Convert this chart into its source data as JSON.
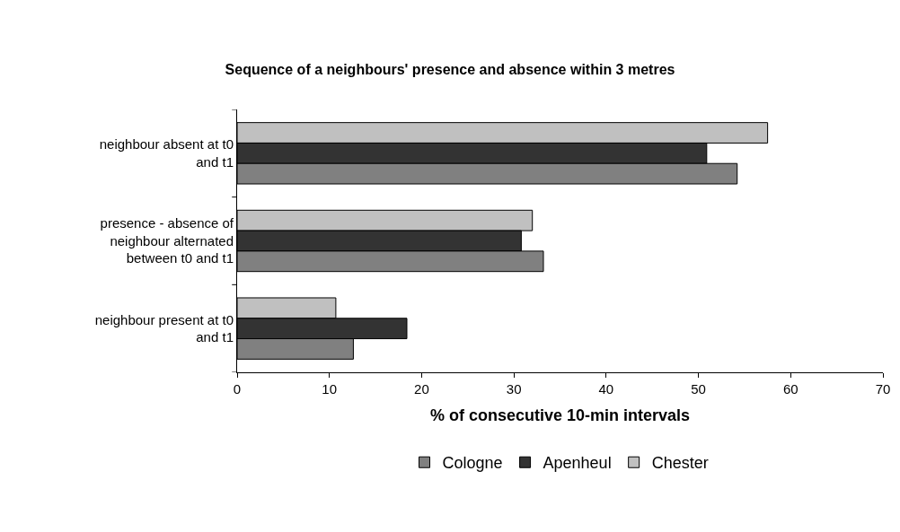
{
  "chart_data": {
    "type": "bar",
    "orientation": "horizontal",
    "title": "Sequence of a neighbours' presence and absence within 3 metres",
    "xlabel": "% of consecutive 10-min intervals",
    "categories": [
      "neighbour absent at t0 and t1",
      "presence - absence of neighbour alternated between t0 and t1",
      "neighbour present at t0 and t1"
    ],
    "series": [
      {
        "name": "Cologne",
        "color": "#808080",
        "values": [
          54.2,
          33.2,
          12.6
        ]
      },
      {
        "name": "Apenheul",
        "color": "#333333",
        "values": [
          50.9,
          30.8,
          18.4
        ]
      },
      {
        "name": "Chester",
        "color": "#c0c0c0",
        "values": [
          57.5,
          32.0,
          10.7
        ]
      }
    ],
    "xlim": [
      0,
      70
    ],
    "xticks": [
      0,
      10,
      20,
      30,
      40,
      50,
      60,
      70
    ],
    "legend": "bottom"
  }
}
